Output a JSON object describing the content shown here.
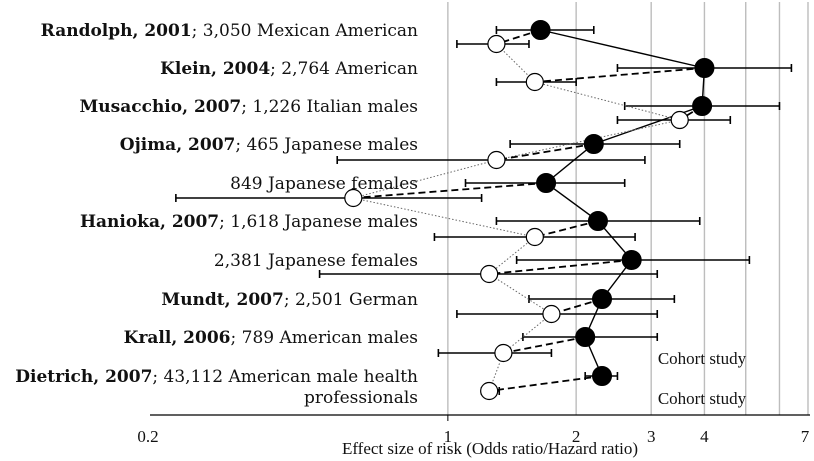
{
  "chart_data": {
    "type": "scatter",
    "title": "",
    "xlabel": "Effect size of risk (Odds ratio/Hazard ratio)",
    "ylabel": "",
    "xscale": "log",
    "xlim": [
      0.2,
      7
    ],
    "xticks": [
      0.2,
      1,
      2,
      3,
      4,
      7
    ],
    "xtick_labels": [
      "0.2",
      "1",
      "2",
      "3",
      "4",
      "7"
    ],
    "grid": "vertical",
    "rows": [
      {
        "author": "Randolph, 2001",
        "desc": "; 3,050 Mexican American",
        "desc_line2": ""
      },
      {
        "author": "Klein, 2004",
        "desc": "; 2,764 American",
        "desc_line2": ""
      },
      {
        "author": "Musacchio, 2007",
        "desc": "; 1,226 Italian males",
        "desc_line2": ""
      },
      {
        "author": "Ojima, 2007",
        "desc": "; 465 Japanese males",
        "desc_line2": ""
      },
      {
        "author": "",
        "desc": "849 Japanese females",
        "desc_line2": ""
      },
      {
        "author": "Hanioka, 2007",
        "desc": "; 1,618 Japanese males",
        "desc_line2": ""
      },
      {
        "author": "",
        "desc": "2,381 Japanese females",
        "desc_line2": ""
      },
      {
        "author": "Mundt, 2007",
        "desc": "; 2,501 German",
        "desc_line2": ""
      },
      {
        "author": "Krall, 2006",
        "desc": "; 789 American males",
        "desc_line2": ""
      },
      {
        "author": "Dietrich, 2007",
        "desc": "; 43,112 American male health",
        "desc_line2": "professionals"
      }
    ],
    "series": [
      {
        "marker": "filled-circle",
        "color": "#000000",
        "points": [
          {
            "row": 0,
            "x": 1.65,
            "lo": 1.3,
            "hi": 2.2
          },
          {
            "row": 1,
            "x": 4.0,
            "lo": 2.5,
            "hi": 6.4
          },
          {
            "row": 2,
            "x": 3.95,
            "lo": 2.6,
            "hi": 6.0
          },
          {
            "row": 3,
            "x": 2.2,
            "lo": 1.4,
            "hi": 3.5
          },
          {
            "row": 4,
            "x": 1.7,
            "lo": 1.1,
            "hi": 2.6
          },
          {
            "row": 5,
            "x": 2.25,
            "lo": 1.3,
            "hi": 3.9
          },
          {
            "row": 6,
            "x": 2.7,
            "lo": 1.45,
            "hi": 5.1
          },
          {
            "row": 7,
            "x": 2.3,
            "lo": 1.55,
            "hi": 3.4
          },
          {
            "row": 8,
            "x": 2.1,
            "lo": 1.5,
            "hi": 3.1
          },
          {
            "row": 9,
            "x": 2.3,
            "lo": 2.1,
            "hi": 2.5
          }
        ]
      },
      {
        "marker": "open-circle",
        "color": "#ffffff",
        "points": [
          {
            "row": 0,
            "x": 1.3,
            "lo": 1.05,
            "hi": 1.55
          },
          {
            "row": 1,
            "x": 1.6,
            "lo": 1.3,
            "hi": 2.0
          },
          {
            "row": 2,
            "x": 3.5,
            "lo": 2.5,
            "hi": 4.6
          },
          {
            "row": 3,
            "x": 1.3,
            "lo": 0.55,
            "hi": 2.9
          },
          {
            "row": 4,
            "x": 0.6,
            "lo": 0.23,
            "hi": 1.2
          },
          {
            "row": 5,
            "x": 1.6,
            "lo": 0.93,
            "hi": 2.75
          },
          {
            "row": 6,
            "x": 1.25,
            "lo": 0.5,
            "hi": 3.1
          },
          {
            "row": 7,
            "x": 1.75,
            "lo": 1.05,
            "hi": 3.1
          },
          {
            "row": 8,
            "x": 1.35,
            "lo": 0.95,
            "hi": 1.75
          },
          {
            "row": 9,
            "x": 1.25,
            "lo": 1.2,
            "hi": 1.32
          }
        ]
      }
    ],
    "annotations": [
      "Cohort study",
      "Cohort study"
    ]
  }
}
